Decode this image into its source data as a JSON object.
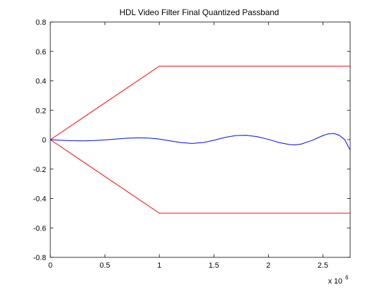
{
  "chart_data": {
    "type": "line",
    "title": "HDL Video Filter Final Quantized Passband",
    "xlabel": "",
    "ylabel": "",
    "x_exponent_label": "x 10",
    "x_exponent_power": "6",
    "xlim": [
      0,
      2.75
    ],
    "ylim": [
      -0.8,
      0.8
    ],
    "grid": false,
    "legend": "none",
    "x_ticks": [
      {
        "value": 0,
        "label": "0"
      },
      {
        "value": 0.5,
        "label": "0.5"
      },
      {
        "value": 1,
        "label": "1"
      },
      {
        "value": 1.5,
        "label": "1.5"
      },
      {
        "value": 2,
        "label": "2"
      },
      {
        "value": 2.5,
        "label": "2.5"
      }
    ],
    "y_ticks": [
      {
        "value": 0.8,
        "label": "0.8"
      },
      {
        "value": 0.6,
        "label": "0.6"
      },
      {
        "value": 0.4,
        "label": "0.4"
      },
      {
        "value": 0.2,
        "label": "0.2"
      },
      {
        "value": 0,
        "label": "0"
      },
      {
        "value": -0.2,
        "label": "-0.2"
      },
      {
        "value": -0.4,
        "label": "-0.4"
      },
      {
        "value": -0.6,
        "label": "-0.6"
      },
      {
        "value": -0.8,
        "label": "-0.8"
      }
    ],
    "series": [
      {
        "color": "#ff0000",
        "role": "upper-bound",
        "x": [
          0,
          1,
          2.75
        ],
        "y": [
          0,
          0.5,
          0.5
        ]
      },
      {
        "color": "#ff0000",
        "role": "lower-bound",
        "x": [
          0,
          1,
          2.75
        ],
        "y": [
          0,
          -0.5,
          -0.5
        ]
      },
      {
        "color": "#0000ff",
        "role": "passband-response",
        "x": [
          0,
          0.1,
          0.2,
          0.3,
          0.4,
          0.5,
          0.6,
          0.7,
          0.8,
          0.9,
          1.0,
          1.1,
          1.2,
          1.3,
          1.4,
          1.5,
          1.6,
          1.7,
          1.8,
          1.9,
          2.0,
          2.1,
          2.2,
          2.25,
          2.3,
          2.4,
          2.5,
          2.55,
          2.6,
          2.65,
          2.7,
          2.75
        ],
        "y": [
          0,
          -0.004,
          -0.007,
          -0.008,
          -0.006,
          -0.002,
          0.004,
          0.01,
          0.013,
          0.011,
          0.004,
          -0.008,
          -0.02,
          -0.025,
          -0.02,
          -0.004,
          0.015,
          0.028,
          0.03,
          0.02,
          0.002,
          -0.02,
          -0.034,
          -0.035,
          -0.03,
          -0.005,
          0.028,
          0.04,
          0.042,
          0.03,
          0.0,
          -0.07
        ]
      }
    ]
  }
}
